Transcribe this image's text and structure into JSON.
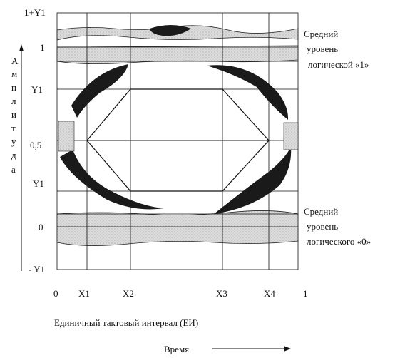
{
  "y_ticks": {
    "top": "1+Y1",
    "one": "1",
    "y1_upper": "Y1",
    "half": "0,5",
    "y1_lower": "Y1",
    "zero": "0",
    "bottom": "- Y1"
  },
  "y_axis_letters": [
    "А",
    "м",
    "п",
    "л",
    "и",
    "т",
    "у",
    "д",
    "а"
  ],
  "x_ticks": [
    "0",
    "X1",
    "X2",
    "X3",
    "X4",
    "1"
  ],
  "annotation_one": [
    "Средний",
    "уровень",
    "логической «1»"
  ],
  "annotation_zero": [
    "Средний",
    "уровень",
    "логического «0»"
  ],
  "x_caption": "Единичный тактовый интервал (ЕИ)",
  "time_label": "Время",
  "colors": {
    "ink": "#111111",
    "band_gray": "#d8d8d8",
    "eye_dark": "#1a1a1a"
  }
}
